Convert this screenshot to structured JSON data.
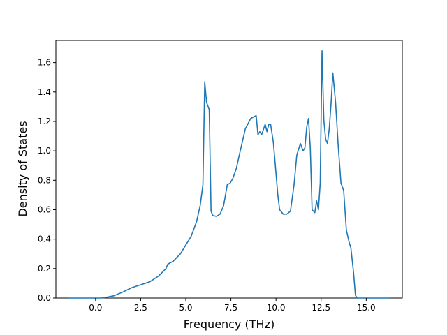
{
  "chart_data": {
    "type": "line",
    "title": "",
    "xlabel": "Frequency (THz)",
    "ylabel": "Density of States",
    "xlim": [
      -2.2,
      17.0
    ],
    "ylim": [
      0.0,
      1.75
    ],
    "xticks": [
      0.0,
      2.5,
      5.0,
      7.5,
      10.0,
      12.5,
      15.0
    ],
    "xtick_labels": [
      "0.0",
      "2.5",
      "5.0",
      "7.5",
      "10.0",
      "12.5",
      "15.0"
    ],
    "yticks": [
      0.0,
      0.2,
      0.4,
      0.6,
      0.8,
      1.0,
      1.2,
      1.4,
      1.6
    ],
    "ytick_labels": [
      "0.0",
      "0.2",
      "0.4",
      "0.6",
      "0.8",
      "1.0",
      "1.2",
      "1.4",
      "1.6"
    ],
    "grid": false,
    "legend": "none",
    "line_color": "#1f77b4",
    "series": [
      {
        "x": [
          -1.5,
          -1.0,
          -0.5,
          0.0,
          0.3,
          0.6,
          1.0,
          1.5,
          2.0,
          2.5,
          3.0,
          3.5,
          3.9,
          4.0,
          4.3,
          4.7,
          5.0,
          5.3,
          5.6,
          5.8,
          5.95,
          6.05,
          6.15,
          6.3,
          6.4,
          6.5,
          6.7,
          6.9,
          7.1,
          7.3,
          7.45,
          7.6,
          7.8,
          8.0,
          8.3,
          8.6,
          8.9,
          9.0,
          9.1,
          9.2,
          9.4,
          9.5,
          9.6,
          9.7,
          9.85,
          9.95,
          10.1,
          10.2,
          10.4,
          10.6,
          10.8,
          11.0,
          11.15,
          11.25,
          11.35,
          11.5,
          11.6,
          11.7,
          11.8,
          11.9,
          12.0,
          12.15,
          12.25,
          12.35,
          12.45,
          12.55,
          12.65,
          12.75,
          12.85,
          12.95,
          13.05,
          13.15,
          13.3,
          13.45,
          13.6,
          13.75,
          13.9,
          14.05,
          14.15,
          14.3,
          14.4,
          14.5,
          14.6,
          14.7,
          14.8,
          15.0,
          15.5,
          16.0,
          16.3
        ],
        "y": [
          0.0,
          0.0,
          0.0,
          0.0,
          0.0,
          0.005,
          0.015,
          0.04,
          0.07,
          0.09,
          0.11,
          0.15,
          0.2,
          0.23,
          0.25,
          0.3,
          0.36,
          0.42,
          0.52,
          0.63,
          0.77,
          1.47,
          1.33,
          1.28,
          0.59,
          0.56,
          0.555,
          0.57,
          0.63,
          0.77,
          0.78,
          0.81,
          0.88,
          0.99,
          1.15,
          1.22,
          1.24,
          1.11,
          1.13,
          1.11,
          1.18,
          1.13,
          1.18,
          1.18,
          1.06,
          0.92,
          0.7,
          0.6,
          0.57,
          0.57,
          0.59,
          0.77,
          0.97,
          1.01,
          1.05,
          1.0,
          1.02,
          1.16,
          1.22,
          1.02,
          0.6,
          0.58,
          0.66,
          0.6,
          0.78,
          1.68,
          1.21,
          1.08,
          1.05,
          1.15,
          1.32,
          1.53,
          1.33,
          1.03,
          0.78,
          0.73,
          0.46,
          0.38,
          0.34,
          0.17,
          0.02,
          0.0,
          0.0,
          0.0,
          0.0,
          0.0,
          0.0,
          0.0,
          0.0
        ]
      }
    ]
  }
}
